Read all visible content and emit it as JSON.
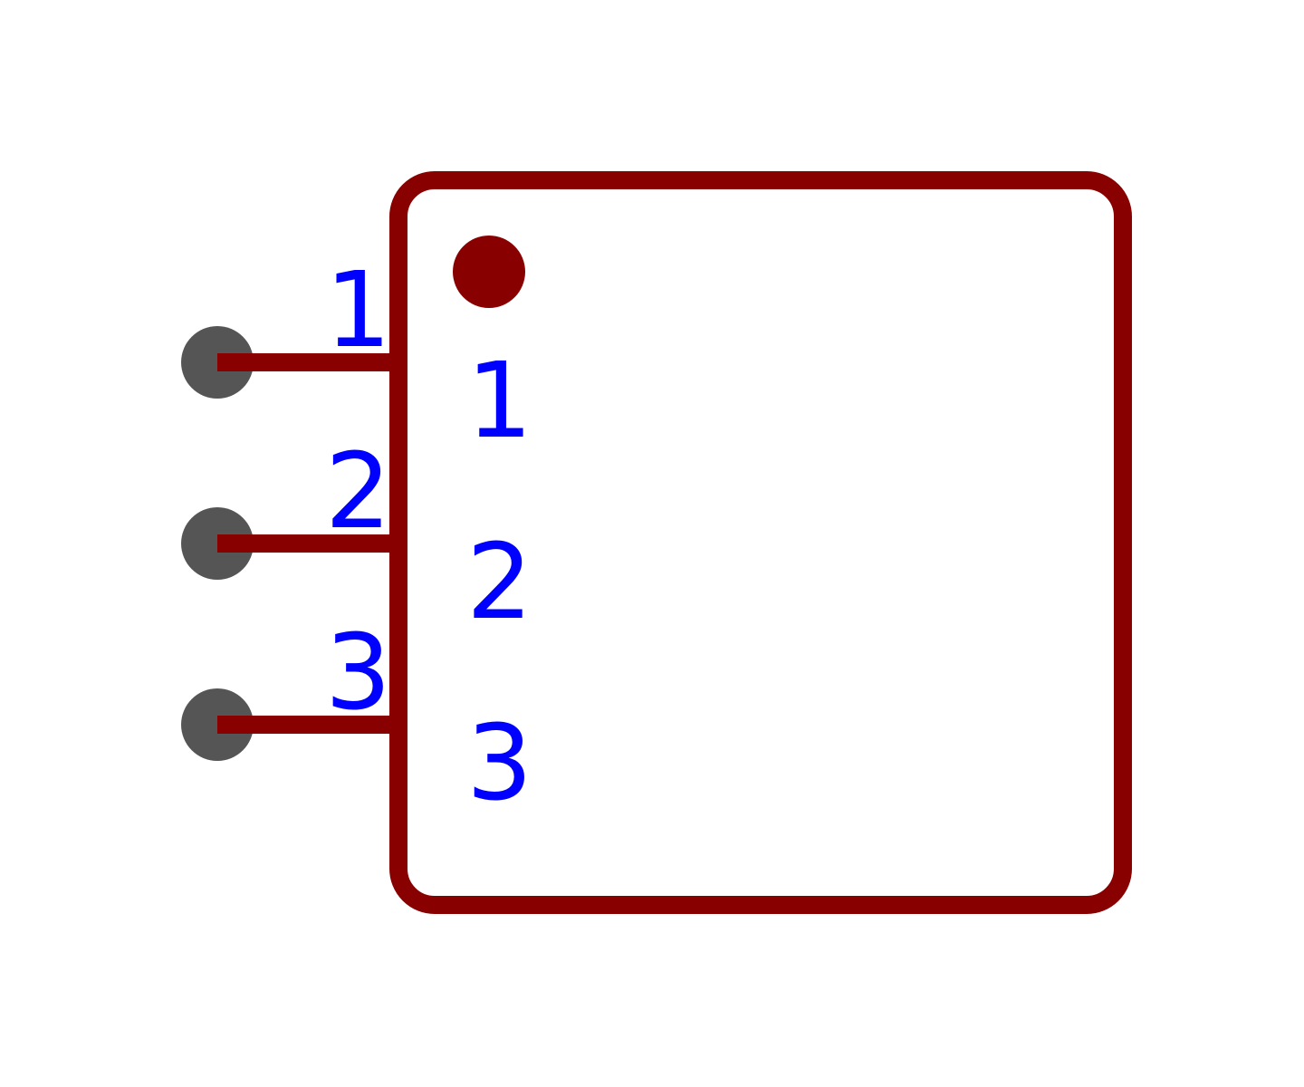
{
  "component": {
    "body_color": "#880000",
    "pin_line_color": "#880000",
    "pin_terminal_color": "#555555",
    "text_color": "#0000ff",
    "pin1_marker": "filled-dot"
  },
  "pins": [
    {
      "number": "1",
      "name": "1"
    },
    {
      "number": "2",
      "name": "2"
    },
    {
      "number": "3",
      "name": "3"
    }
  ]
}
